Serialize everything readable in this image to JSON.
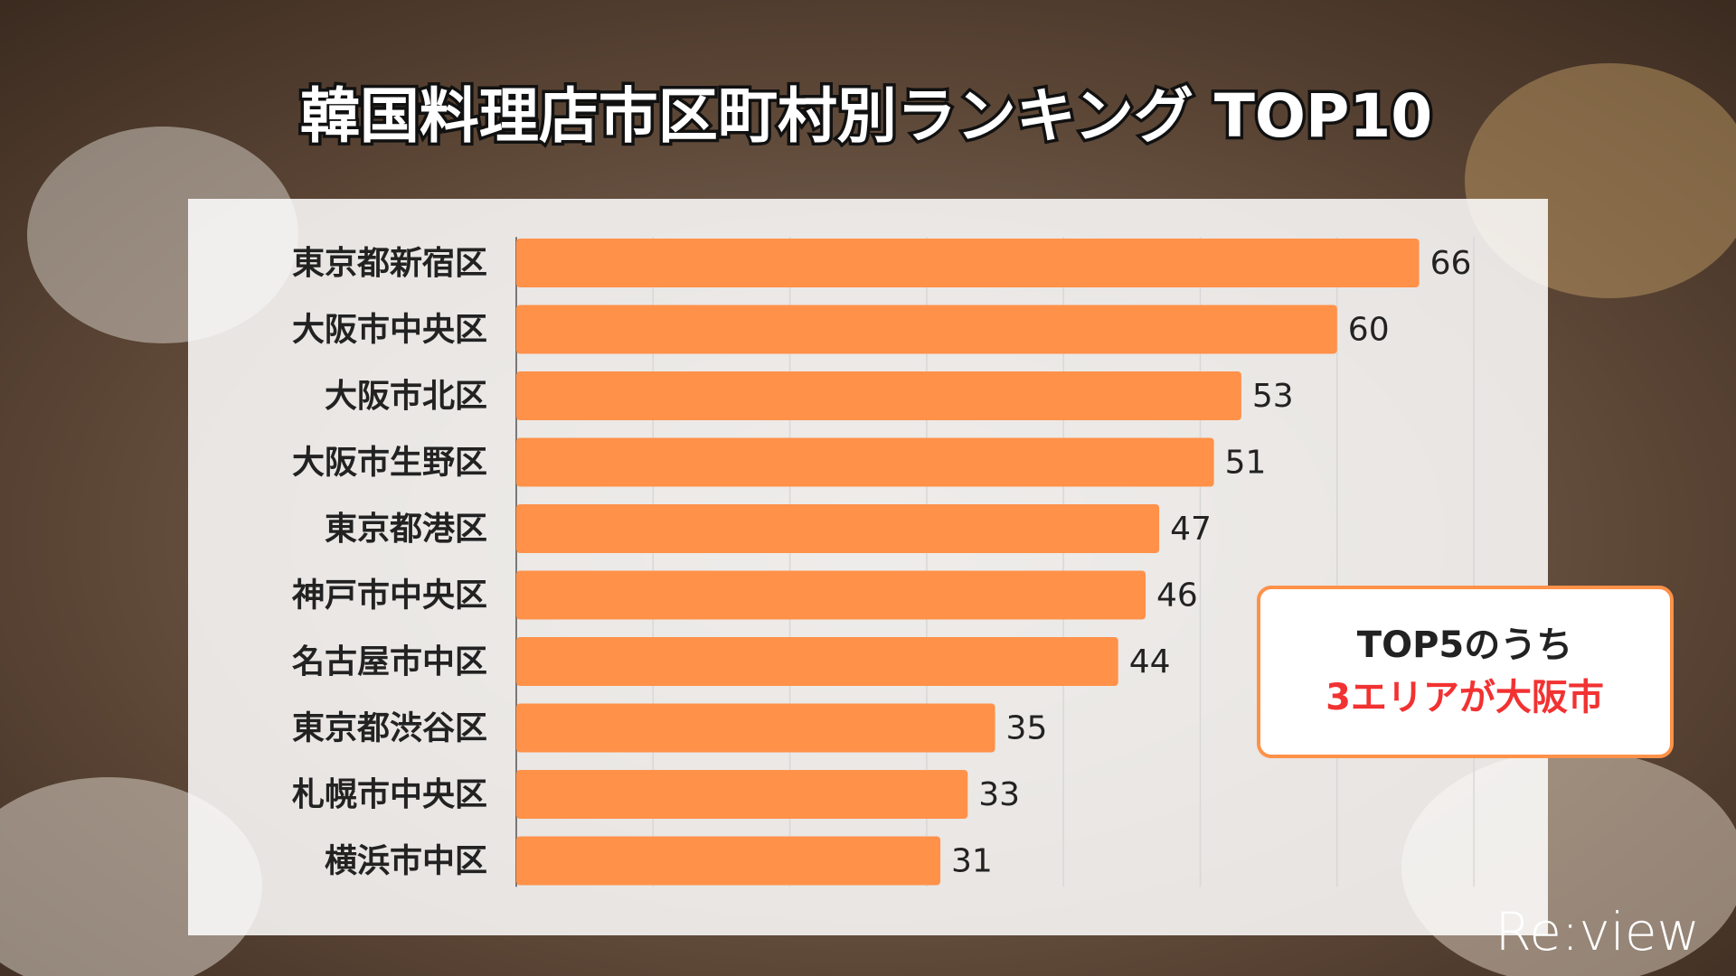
{
  "chart_data": {
    "type": "barh",
    "title": "韓国料理店市区町村別ランキング TOP10",
    "categories": [
      "東京都新宿区",
      "大阪市中央区",
      "大阪市北区",
      "大阪市生野区",
      "東京都港区",
      "神戸市中央区",
      "名古屋市中区",
      "東京都渋谷区",
      "札幌市中央区",
      "横浜市中区"
    ],
    "values": [
      66,
      60,
      53,
      51,
      47,
      46,
      44,
      35,
      33,
      31
    ],
    "color": "#ff9149",
    "xlim": [
      0,
      70
    ],
    "xticks": [
      0,
      10,
      20,
      30,
      40,
      50,
      60,
      70
    ],
    "grid": true,
    "annotation": {
      "line1": "TOP5のうち",
      "line2": "3エリアが大阪市"
    },
    "logo": "Re:view"
  }
}
